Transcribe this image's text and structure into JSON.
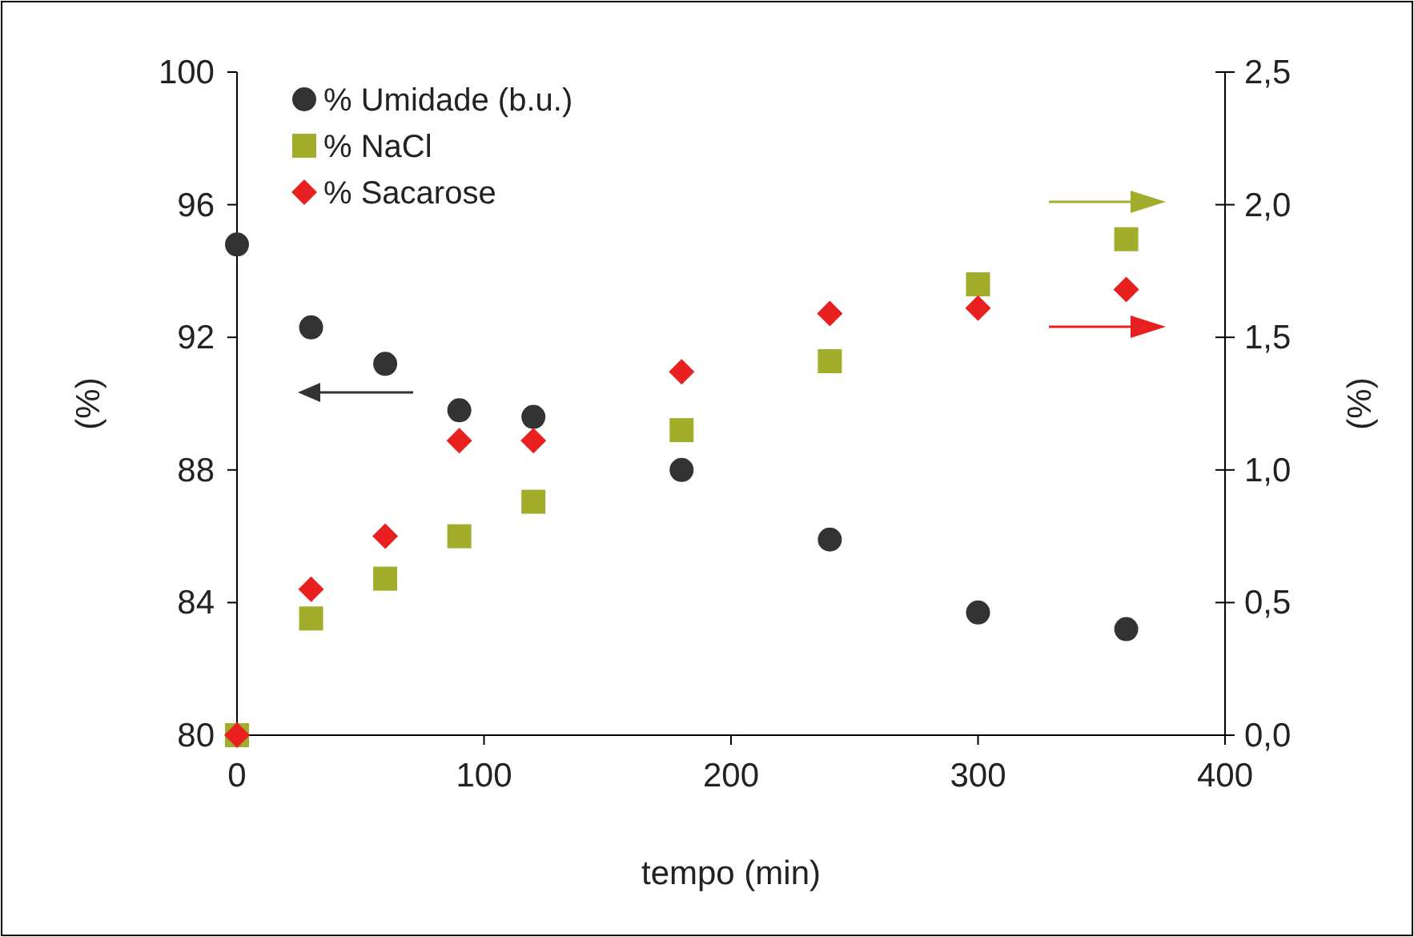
{
  "chart_data": {
    "type": "scatter",
    "xlabel": "tempo (min)",
    "ylabel": "(%)",
    "y2label": "(%)",
    "x": [
      0,
      30,
      60,
      90,
      120,
      180,
      240,
      300,
      360
    ],
    "series": [
      {
        "name": "% Umidade (b.u.)",
        "color": "#333333",
        "marker": "circle",
        "values": [
          94.8,
          92.3,
          91.2,
          89.8,
          89.6,
          88.0,
          85.9,
          83.7,
          83.2
        ]
      },
      {
        "name": "% NaCl",
        "color": "#a3ad2c",
        "marker": "square",
        "axis": "y2",
        "values": [
          0,
          0.44,
          0.59,
          0.75,
          0.88,
          1.15,
          1.41,
          1.7,
          1.87
        ]
      },
      {
        "name": "% Sacarose",
        "color": "#e8201f",
        "marker": "diamond",
        "axis": "y2",
        "values": [
          0,
          0.55,
          0.75,
          1.11,
          1.11,
          1.37,
          1.59,
          1.61,
          1.68
        ]
      }
    ],
    "xlim": [
      0,
      400
    ],
    "xticks": [
      0,
      100,
      200,
      300,
      400
    ],
    "ylim": [
      80,
      100
    ],
    "yticks": [
      80,
      84,
      88,
      92,
      96,
      100
    ],
    "y2lim": [
      0,
      2.5
    ],
    "y2ticks": [
      {
        "value": 0,
        "label": "0,0"
      },
      {
        "value": 0.5,
        "label": "0,5"
      },
      {
        "value": 1,
        "label": "1,0"
      },
      {
        "value": 1.5,
        "label": "1,5"
      },
      {
        "value": 2,
        "label": "2,0"
      },
      {
        "value": 2.5,
        "label": "2,5"
      }
    ],
    "grid": false,
    "legend": "top left"
  }
}
